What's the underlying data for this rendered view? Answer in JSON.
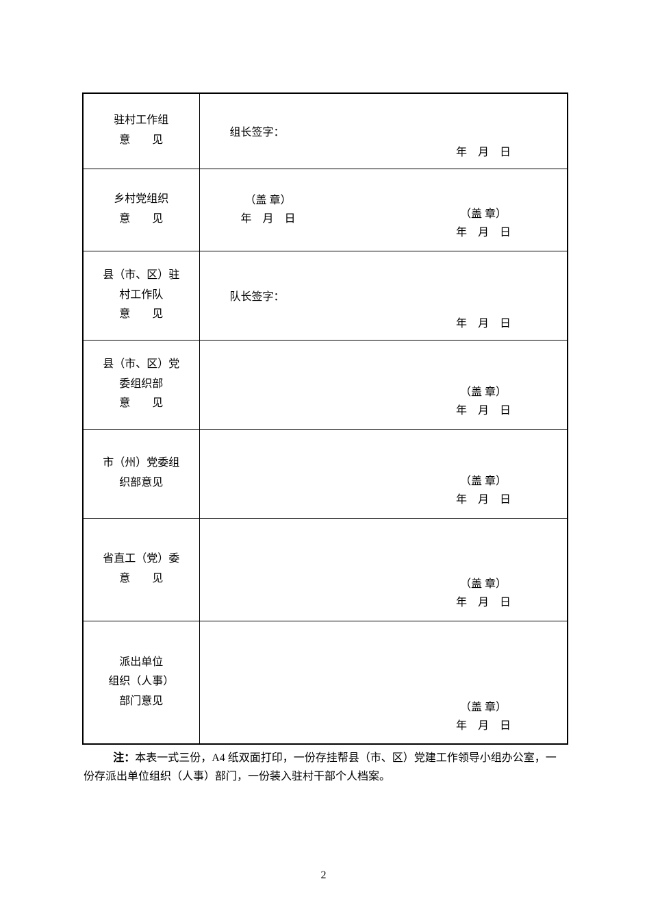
{
  "rows": [
    {
      "label_line1": "驻村工作组",
      "label_line2_pre": "意",
      "label_line2_gap": "　　",
      "label_line2_post": "见",
      "sig_label": "组长签字：",
      "date_text": "年　月　日",
      "height_class": "row-h-110",
      "layout": "sig-date"
    },
    {
      "label_line1": "乡村党组织",
      "label_line2_pre": "意",
      "label_line2_gap": "　　",
      "label_line2_post": "见",
      "stamp_left": "（盖 章）",
      "date_left": "年　月　日",
      "stamp_right": "（盖 章）",
      "date_right": "年　月　日",
      "height_class": "row-h-120",
      "layout": "double-stamp"
    },
    {
      "label_line1": "县（市、区）驻",
      "label_line2": "村工作队",
      "label_line3_pre": "意",
      "label_line3_gap": "　　",
      "label_line3_post": "见",
      "sig_label": "队长签字：",
      "date_text": "年　月　日",
      "height_class": "row-h-130",
      "layout": "sig-date"
    },
    {
      "label_line1": "县（市、区）党",
      "label_line2": "委组织部",
      "label_line3_pre": "意",
      "label_line3_gap": "　　",
      "label_line3_post": "见",
      "stamp_right": "（盖 章）",
      "date_right": "年　月　日",
      "height_class": "row-h-130",
      "layout": "single-stamp"
    },
    {
      "label_line1": "市（州）党委组",
      "label_line2": "织部意见",
      "stamp_right": "（盖 章）",
      "date_right": "年　月　日",
      "height_class": "row-h-130",
      "layout": "single-stamp"
    },
    {
      "label_line1": "省直工（党）委",
      "label_line2_pre": "意",
      "label_line2_gap": "　　",
      "label_line2_post": "见",
      "stamp_right": "（盖 章）",
      "date_right": "年　月　日",
      "height_class": "row-h-150",
      "layout": "single-stamp"
    },
    {
      "label_line1": "派出单位",
      "label_line2": "组织（人事）",
      "label_line3": "部门意见",
      "stamp_right": "（盖 章）",
      "date_right": "年　月　日",
      "height_class": "row-h-180",
      "layout": "single-stamp"
    }
  ],
  "note": {
    "bold": "注：",
    "text": "本表一式三份，A4 纸双面打印，一份存挂帮县（市、区）党建工作领导小组办公室，一份存派出单位组织（人事）部门，一份装入驻村干部个人档案。"
  },
  "page_number": "2"
}
